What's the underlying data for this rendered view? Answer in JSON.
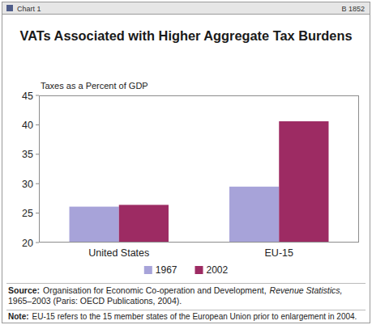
{
  "chart_data": {
    "type": "bar",
    "chart_label": "Chart 1",
    "report_id": "B 1852",
    "title": "VATs Associated with Higher Aggregate Tax Burdens",
    "y_label": "Taxes as a Percent of GDP",
    "categories": [
      "United States",
      "EU-15"
    ],
    "series": [
      {
        "name": "1967",
        "color": "#a7a3d9",
        "values": [
          26.1,
          29.5
        ]
      },
      {
        "name": "2002",
        "color": "#9d2b63",
        "values": [
          26.4,
          40.6
        ]
      }
    ],
    "ylim": [
      20,
      45
    ],
    "yticks": [
      20,
      25,
      30,
      35,
      40,
      45
    ],
    "grid": false,
    "legend": "bottom",
    "source": {
      "label": "Source:",
      "text": "Organisation for Economic Co-operation and Development,",
      "title": "Revenue Statistics,",
      "details": "1965–2003 (Paris: OECD Publications, 2004)."
    },
    "note": {
      "label": "Note:",
      "text": "EU-15 refers to the 15 member states of the European Union prior to enlargement in 2004."
    }
  }
}
